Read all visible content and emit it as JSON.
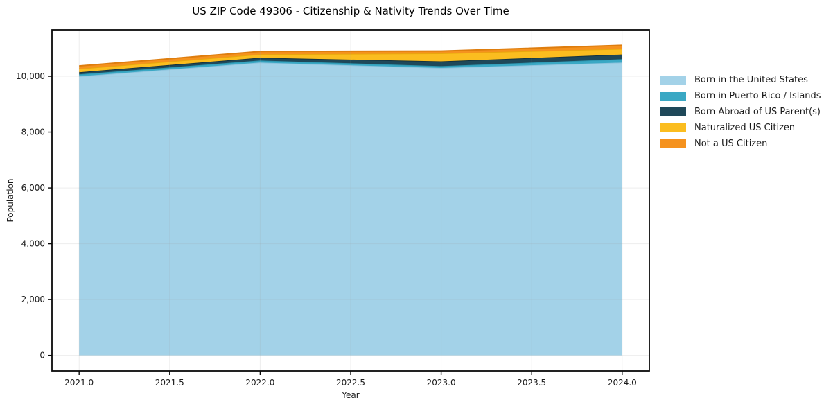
{
  "chart_data": {
    "type": "area",
    "stacked": true,
    "title": "US ZIP Code 49306 - Citizenship & Nativity Trends Over Time",
    "xlabel": "Year",
    "ylabel": "Population",
    "x": [
      2021,
      2022,
      2023,
      2024
    ],
    "series": [
      {
        "name": "Born in the United States",
        "color": "#A3D2E8",
        "edge": "#8FC4DE",
        "values": [
          10000,
          10490,
          10300,
          10490
        ]
      },
      {
        "name": "Born in Puerto Rico / Islands",
        "color": "#3AA8C4",
        "edge": "#2C96B0",
        "values": [
          70,
          75,
          65,
          125
        ]
      },
      {
        "name": "Born Abroad of US Parent(s)",
        "color": "#1F4859",
        "edge": "#14323F",
        "values": [
          75,
          100,
          170,
          165
        ]
      },
      {
        "name": "Naturalized US Citizen",
        "color": "#FBBD1F",
        "edge": "#E8A70C",
        "values": [
          125,
          125,
          285,
          205
        ]
      },
      {
        "name": "Not a US Citizen",
        "color": "#F5921E",
        "edge": "#DE7D0E",
        "values": [
          100,
          100,
          85,
          125
        ]
      }
    ],
    "xlim": [
      2020.85,
      2024.15
    ],
    "ylim": [
      -555,
      11665
    ],
    "xticks": [
      {
        "v": 2021.0,
        "label": "2021.0"
      },
      {
        "v": 2021.5,
        "label": "2021.5"
      },
      {
        "v": 2022.0,
        "label": "2022.0"
      },
      {
        "v": 2022.5,
        "label": "2022.5"
      },
      {
        "v": 2023.0,
        "label": "2023.0"
      },
      {
        "v": 2023.5,
        "label": "2023.5"
      },
      {
        "v": 2024.0,
        "label": "2024.0"
      }
    ],
    "yticks": [
      {
        "v": 0,
        "label": "0"
      },
      {
        "v": 2000,
        "label": "2,000"
      },
      {
        "v": 4000,
        "label": "4,000"
      },
      {
        "v": 6000,
        "label": "6,000"
      },
      {
        "v": 8000,
        "label": "8,000"
      },
      {
        "v": 10000,
        "label": "10,000"
      }
    ],
    "grid": true,
    "legend_position": "right",
    "colors": {
      "grid": "#9E9E9E",
      "spine": "#0a0a0a",
      "tick_text": "#1a1a1a"
    }
  }
}
